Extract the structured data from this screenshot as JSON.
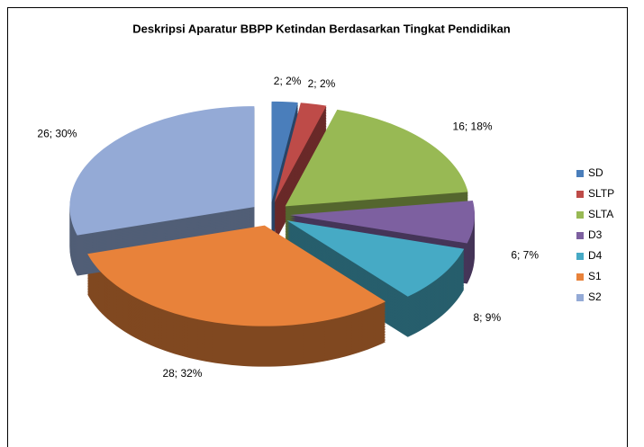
{
  "chart_data": {
    "type": "pie3d",
    "title": "Deskripsi Aparatur  BBPP Ketindan Berdasarkan Tingkat Pendidikan",
    "categories": [
      "SD",
      "SLTP",
      "SLTA",
      "D3",
      "D4",
      "S1",
      "S2"
    ],
    "values": [
      2,
      2,
      16,
      6,
      8,
      28,
      26
    ],
    "value_labels": [
      "2; 2%",
      "2; 2%",
      "16; 18%",
      "6; 7%",
      "8; 9%",
      "28; 32%",
      "26; 30%"
    ],
    "colors": [
      "#4a7ebb",
      "#be4b48",
      "#98b954",
      "#7d60a0",
      "#46aac5",
      "#e8823a",
      "#94aad6"
    ],
    "legend": "right"
  }
}
